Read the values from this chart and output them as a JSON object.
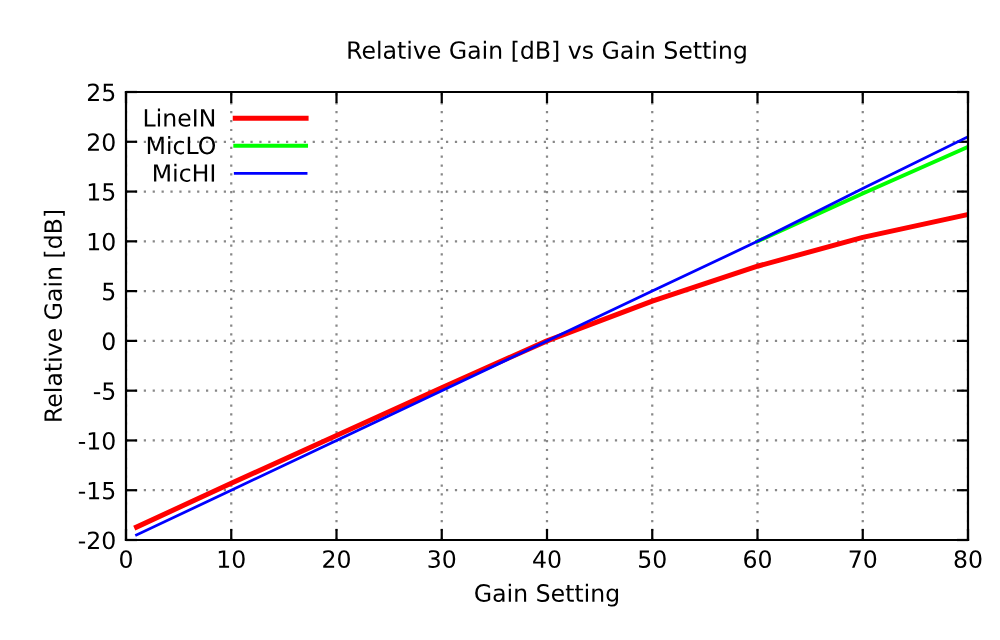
{
  "chart_data": {
    "type": "line",
    "title": "Relative Gain [dB] vs Gain Setting",
    "xlabel": "Gain Setting",
    "ylabel": "Relative Gain [dB]",
    "x": [
      1,
      10,
      20,
      30,
      40,
      50,
      60,
      70,
      80
    ],
    "series": [
      {
        "name": "LineIN",
        "color": "#ff0000",
        "values": [
          -18.7,
          -14.3,
          -9.5,
          -4.7,
          0,
          4,
          7.5,
          10.4,
          12.7
        ]
      },
      {
        "name": "MicLO",
        "color": "#00ff00",
        "values": [
          null,
          null,
          null,
          null,
          null,
          null,
          10,
          14.8,
          19.5
        ]
      },
      {
        "name": "MicHI",
        "color": "#0000ff",
        "values": [
          -19.5,
          -15,
          -10,
          -5,
          0,
          5,
          10,
          15.3,
          20.5
        ]
      }
    ],
    "xlim": [
      0,
      80
    ],
    "xticks": [
      0,
      10,
      20,
      30,
      40,
      50,
      60,
      70,
      80
    ],
    "ylim": [
      -20,
      25
    ],
    "yticks": [
      -20,
      -15,
      -10,
      -5,
      0,
      5,
      10,
      15,
      20,
      25
    ],
    "grid": true,
    "legend": "top left",
    "marker": "none",
    "line_style": "solid"
  }
}
